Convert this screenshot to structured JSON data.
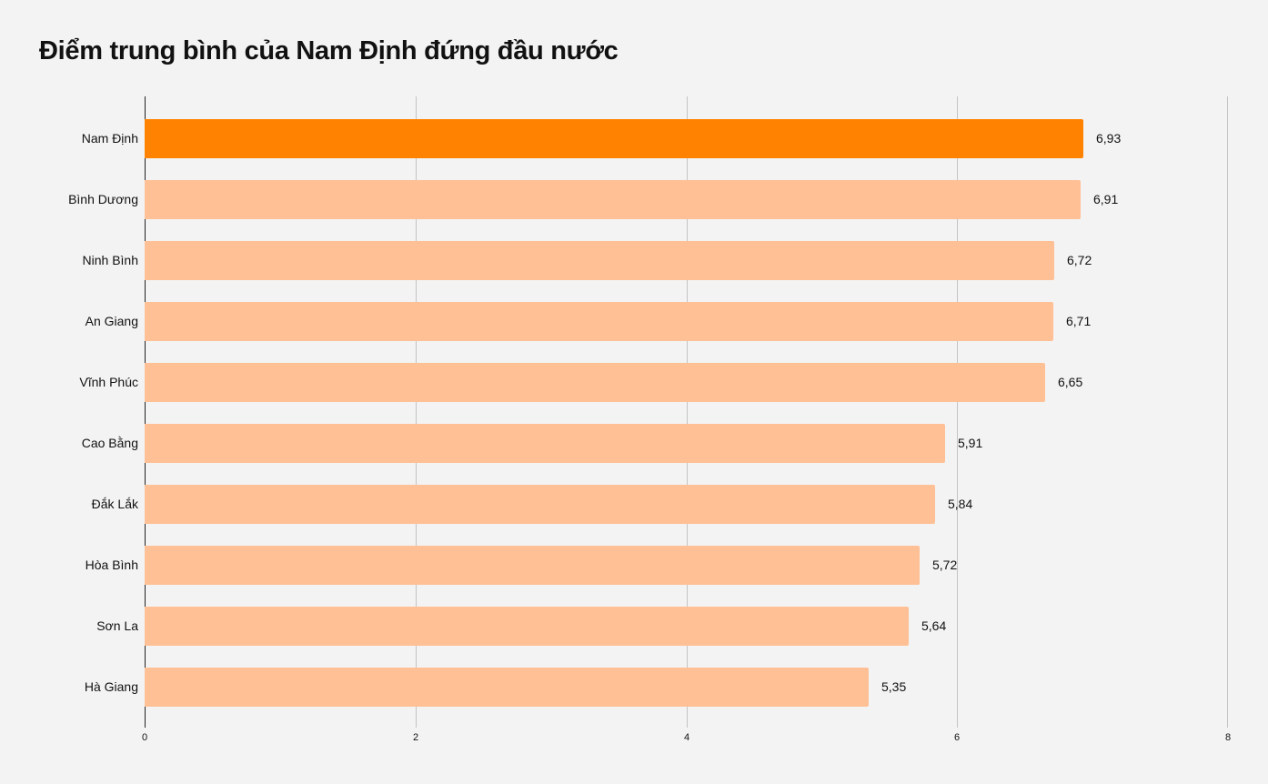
{
  "chart_data": {
    "type": "bar",
    "orientation": "horizontal",
    "title": "Điểm trung bình của Nam Định đứng đầu nước",
    "xlabel": "",
    "ylabel": "",
    "xlim": [
      0,
      8
    ],
    "x_ticks": [
      "0",
      "2",
      "4",
      "6",
      "8"
    ],
    "grid": true,
    "legend": null,
    "categories": [
      "Nam Định",
      "Bình Dương",
      "Ninh Bình",
      "An Giang",
      "Vĩnh Phúc",
      "Cao Bằng",
      "Đắk Lắk",
      "Hòa Bình",
      "Sơn La",
      "Hà Giang"
    ],
    "values": [
      6.93,
      6.91,
      6.72,
      6.71,
      6.65,
      5.91,
      5.84,
      5.72,
      5.64,
      5.35
    ],
    "value_labels": [
      "6,93",
      "6,91",
      "6,72",
      "6,71",
      "6,65",
      "5,91",
      "5,84",
      "5,72",
      "5,64",
      "5,35"
    ],
    "highlight_index": 0,
    "colors": {
      "highlight": "#ff8300",
      "default": "#ffc096",
      "background": "#f3f3f3",
      "grid": "#c4c4c4",
      "axis": "#222222"
    }
  }
}
